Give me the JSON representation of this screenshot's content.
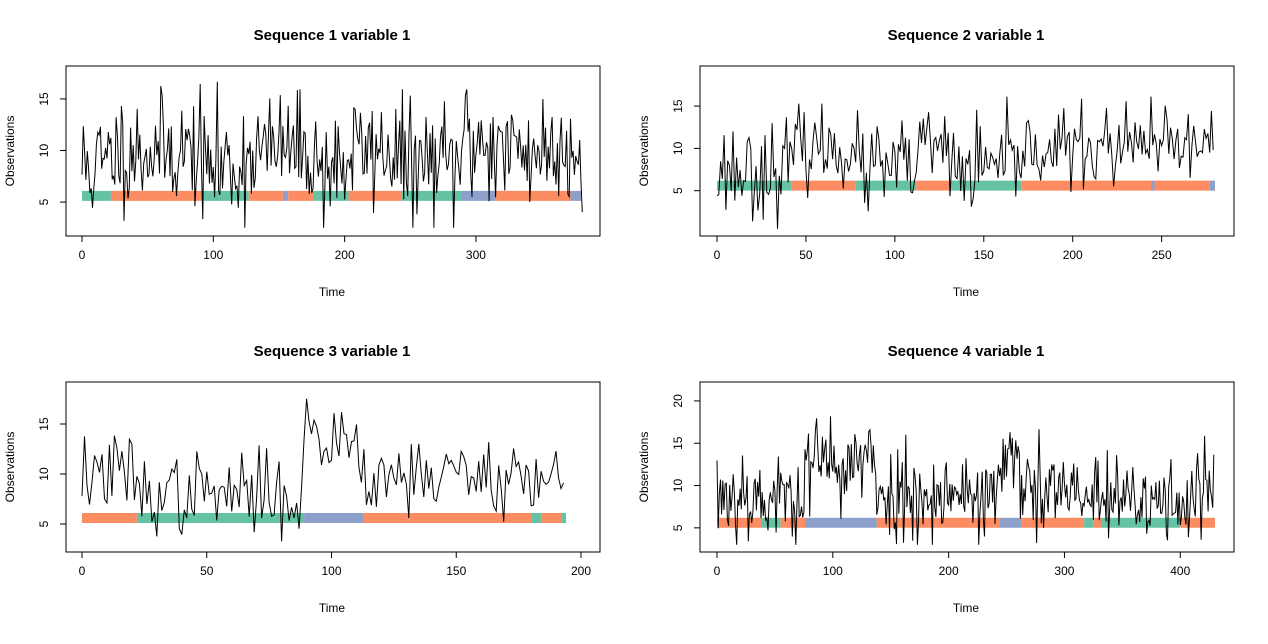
{
  "colors": {
    "state_1": "#66C2A5",
    "state_2": "#FC8D62",
    "state_3": "#8DA0CB",
    "line": "#000000"
  },
  "chart_data": [
    {
      "type": "line",
      "title": "Sequence  1  variable  1",
      "xlabel": "Time",
      "ylabel": "Observations",
      "xlim": [
        0,
        380
      ],
      "ylim": [
        2,
        18
      ],
      "xticks": [
        0,
        100,
        200,
        300
      ],
      "yticks": [
        5,
        10,
        15
      ],
      "state_band_y": 5.6,
      "states": [
        {
          "start": 0,
          "end": 22,
          "state": 1
        },
        {
          "start": 22,
          "end": 91,
          "state": 2
        },
        {
          "start": 91,
          "end": 127,
          "state": 1
        },
        {
          "start": 127,
          "end": 153,
          "state": 2
        },
        {
          "start": 153,
          "end": 157,
          "state": 3
        },
        {
          "start": 157,
          "end": 176,
          "state": 2
        },
        {
          "start": 176,
          "end": 203,
          "state": 1
        },
        {
          "start": 203,
          "end": 243,
          "state": 2
        },
        {
          "start": 243,
          "end": 289,
          "state": 1
        },
        {
          "start": 289,
          "end": 315,
          "state": 3
        },
        {
          "start": 315,
          "end": 372,
          "state": 2
        },
        {
          "start": 372,
          "end": 382,
          "state": 3
        }
      ],
      "series": [
        {
          "name": "observations",
          "n": 382,
          "seed": 11,
          "levels": [
            {
              "state": 1,
              "mean": 8.5,
              "sd": 3.0
            },
            {
              "state": 2,
              "mean": 10.0,
              "sd": 2.7
            },
            {
              "state": 3,
              "mean": 11.0,
              "sd": 3.3
            }
          ]
        }
      ]
    },
    {
      "type": "line",
      "title": "Sequence  2  variable  1",
      "xlabel": "Time",
      "ylabel": "Observations",
      "xlim": [
        0,
        280
      ],
      "ylim": [
        0,
        19.5
      ],
      "xticks": [
        0,
        50,
        100,
        150,
        200,
        250
      ],
      "yticks": [
        5,
        10,
        15
      ],
      "state_band_y": 5.6,
      "states": [
        {
          "start": 0,
          "end": 42,
          "state": 1
        },
        {
          "start": 42,
          "end": 78,
          "state": 2
        },
        {
          "start": 78,
          "end": 112,
          "state": 1
        },
        {
          "start": 112,
          "end": 131,
          "state": 2
        },
        {
          "start": 131,
          "end": 171,
          "state": 1
        },
        {
          "start": 171,
          "end": 244,
          "state": 2
        },
        {
          "start": 244,
          "end": 246,
          "state": 3
        },
        {
          "start": 246,
          "end": 277,
          "state": 2
        },
        {
          "start": 277,
          "end": 280,
          "state": 3
        }
      ],
      "series": [
        {
          "name": "observations",
          "n": 280,
          "seed": 23,
          "levels": [
            {
              "state": 1,
              "mean": 7.5,
              "sd": 2.8
            },
            {
              "state": 2,
              "mean": 10.0,
              "sd": 2.3
            },
            {
              "state": 3,
              "mean": 12.0,
              "sd": 3.0
            }
          ]
        }
      ]
    },
    {
      "type": "line",
      "title": "Sequence  3  variable  1",
      "xlabel": "Time",
      "ylabel": "Observations",
      "xlim": [
        0,
        200
      ],
      "ylim": [
        2.5,
        19
      ],
      "xticks": [
        0,
        50,
        100,
        150,
        200
      ],
      "yticks": [
        5,
        10,
        15
      ],
      "state_band_y": 5.6,
      "states": [
        {
          "start": 0,
          "end": 22,
          "state": 2
        },
        {
          "start": 22,
          "end": 89,
          "state": 1
        },
        {
          "start": 89,
          "end": 113,
          "state": 3
        },
        {
          "start": 113,
          "end": 180,
          "state": 2
        },
        {
          "start": 180,
          "end": 184,
          "state": 1
        },
        {
          "start": 184,
          "end": 192,
          "state": 2
        },
        {
          "start": 192,
          "end": 194,
          "state": 1
        }
      ],
      "series": [
        {
          "name": "observations",
          "n": 194,
          "seed": 37,
          "levels": [
            {
              "state": 1,
              "mean": 8.0,
              "sd": 2.0
            },
            {
              "state": 2,
              "mean": 10.0,
              "sd": 2.0
            },
            {
              "state": 3,
              "mean": 13.5,
              "sd": 2.5
            }
          ]
        }
      ]
    },
    {
      "type": "line",
      "title": "Sequence  4  variable  1",
      "xlabel": "Time",
      "ylabel": "Observations",
      "xlim": [
        0,
        430
      ],
      "ylim": [
        2.5,
        22
      ],
      "xticks": [
        0,
        100,
        200,
        300,
        400
      ],
      "yticks": [
        5,
        10,
        15,
        20
      ],
      "state_band_y": 5.6,
      "states": [
        {
          "start": 0,
          "end": 38,
          "state": 2
        },
        {
          "start": 38,
          "end": 55,
          "state": 1
        },
        {
          "start": 55,
          "end": 76,
          "state": 2
        },
        {
          "start": 76,
          "end": 138,
          "state": 3
        },
        {
          "start": 138,
          "end": 244,
          "state": 2
        },
        {
          "start": 244,
          "end": 263,
          "state": 3
        },
        {
          "start": 263,
          "end": 317,
          "state": 2
        },
        {
          "start": 317,
          "end": 325,
          "state": 1
        },
        {
          "start": 325,
          "end": 332,
          "state": 2
        },
        {
          "start": 332,
          "end": 400,
          "state": 1
        },
        {
          "start": 400,
          "end": 430,
          "state": 2
        }
      ],
      "series": [
        {
          "name": "observations",
          "n": 430,
          "seed": 53,
          "levels": [
            {
              "state": 1,
              "mean": 8.0,
              "sd": 2.5
            },
            {
              "state": 2,
              "mean": 9.0,
              "sd": 2.8
            },
            {
              "state": 3,
              "mean": 12.5,
              "sd": 2.8
            }
          ]
        }
      ]
    }
  ]
}
